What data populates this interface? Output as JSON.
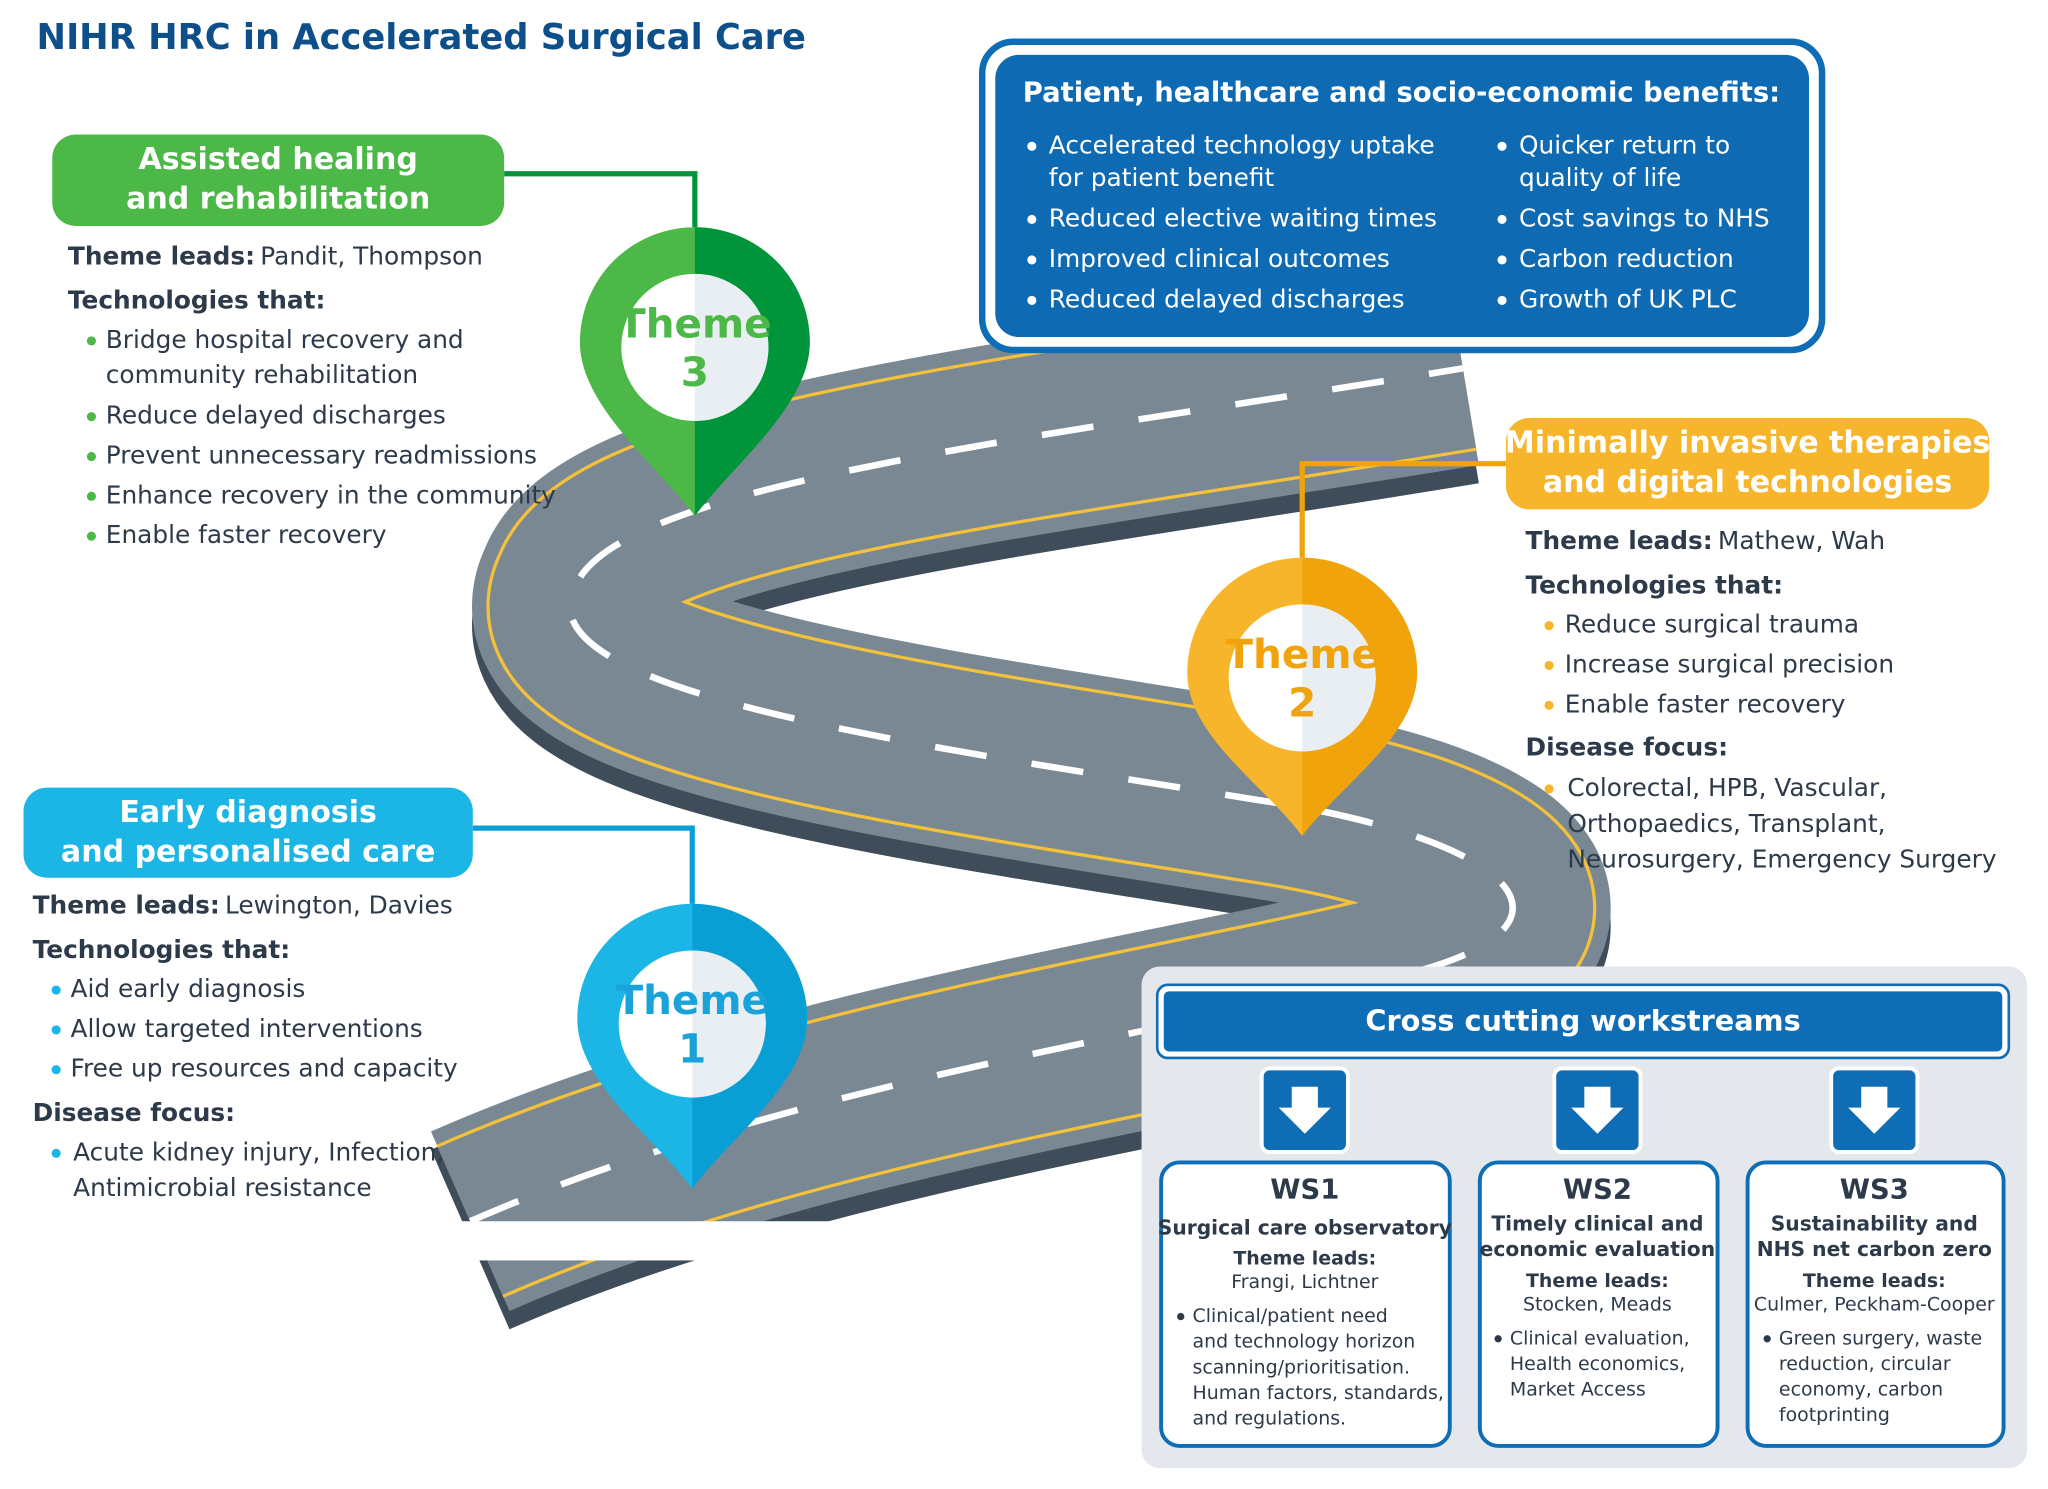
{
  "title": "NIHR HRC in Accelerated Surgical Care",
  "benefits": {
    "heading": "Patient, healthcare and socio-economic benefits:",
    "left": [
      [
        "Accelerated technology uptake",
        "for patient benefit"
      ],
      [
        "Reduced elective waiting times"
      ],
      [
        "Improved clinical outcomes"
      ],
      [
        "Reduced delayed discharges"
      ]
    ],
    "right": [
      [
        "Quicker return to",
        "quality of life"
      ],
      [
        "Cost savings to NHS"
      ],
      [
        "Carbon reduction"
      ],
      [
        "Growth of UK PLC"
      ]
    ]
  },
  "themes": [
    {
      "pin": [
        "Theme",
        "1"
      ],
      "heading": [
        "Early diagnosis",
        "and personalised care"
      ],
      "leads_label": "Theme leads:",
      "leads": "Lewington, Davies",
      "tech_label": "Technologies that:",
      "tech": [
        [
          "Aid early diagnosis"
        ],
        [
          "Allow targeted interventions"
        ],
        [
          "Free up resources and capacity"
        ]
      ],
      "disease_label": "Disease focus:",
      "disease": [
        [
          "Acute kidney injury, Infection,",
          "Antimicrobial resistance"
        ]
      ]
    },
    {
      "pin": [
        "Theme",
        "2"
      ],
      "heading": [
        "Minimally invasive therapies",
        "and digital technologies"
      ],
      "leads_label": "Theme leads:",
      "leads": "Mathew, Wah",
      "tech_label": "Technologies that:",
      "tech": [
        [
          "Reduce surgical trauma"
        ],
        [
          "Increase surgical precision"
        ],
        [
          "Enable faster recovery"
        ]
      ],
      "disease_label": "Disease focus:",
      "disease": [
        [
          "Colorectal, HPB, Vascular,",
          "Orthopaedics, Transplant,",
          "Neurosurgery, Emergency Surgery"
        ]
      ]
    },
    {
      "pin": [
        "Theme",
        "3"
      ],
      "heading": [
        "Assisted healing",
        "and rehabilitation"
      ],
      "leads_label": "Theme leads:",
      "leads": "Pandit, Thompson",
      "tech_label": "Technologies that:",
      "tech": [
        [
          "Bridge hospital recovery and",
          "community rehabilitation"
        ],
        [
          "Reduce delayed discharges"
        ],
        [
          "Prevent unnecessary readmissions"
        ],
        [
          "Enhance recovery in the community"
        ],
        [
          "Enable faster recovery"
        ]
      ]
    }
  ],
  "workstreams": {
    "heading": "Cross cutting workstreams",
    "items": [
      {
        "id": "WS1",
        "title": [
          "Surgical care observatory"
        ],
        "leads_label": "Theme leads:",
        "leads": "Frangi, Lichtner",
        "bullet": [
          "Clinical/patient need",
          "and technology horizon",
          "scanning/prioritisation.",
          "Human factors, standards,",
          "and regulations."
        ]
      },
      {
        "id": "WS2",
        "title": [
          "Timely clinical and",
          "economic evaluation"
        ],
        "leads_label": "Theme leads:",
        "leads": "Stocken, Meads",
        "bullet": [
          "Clinical evaluation,",
          "Health economics,",
          "Market Access"
        ]
      },
      {
        "id": "WS3",
        "title": [
          "Sustainability and",
          "NHS net carbon zero"
        ],
        "leads_label": "Theme leads:",
        "leads": "Culmer, Peckham-Cooper",
        "bullet": [
          "Green surgery, waste",
          "reduction, circular",
          "economy, carbon",
          "footprinting"
        ]
      }
    ]
  }
}
